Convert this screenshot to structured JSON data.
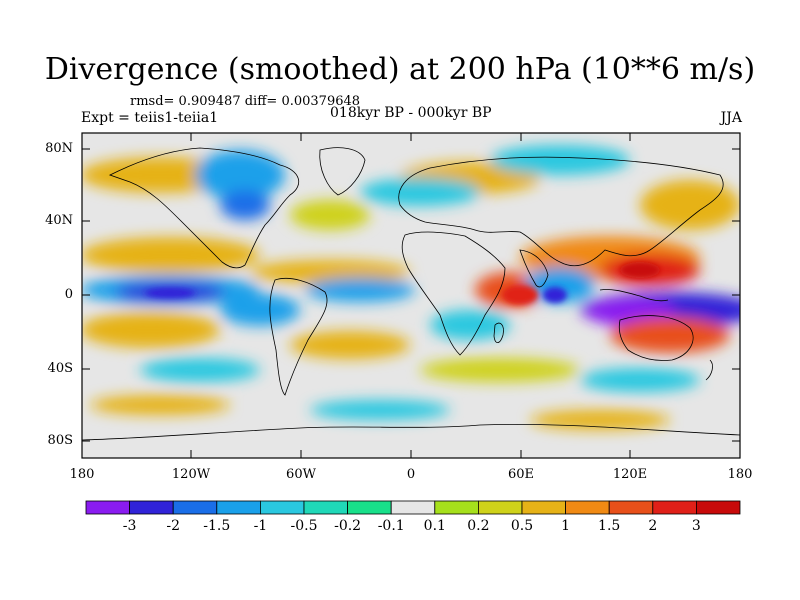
{
  "title": "Divergence (smoothed) at 200 hPa (10**6 m/s)",
  "stats_line": "rmsd= 0.909487 diff= 0.00379648",
  "experiment": "Expt = teiis1-teiia1",
  "period": "018kyr BP - 000kyr BP",
  "season": "JJA",
  "y_ticks": [
    "80N",
    "40N",
    "0",
    "40S",
    "80S"
  ],
  "x_ticks": [
    "180",
    "120W",
    "60W",
    "0",
    "60E",
    "120E",
    "180"
  ],
  "colorbar": {
    "colors": [
      "#8a1cf0",
      "#3023d8",
      "#1a6ee8",
      "#1aa0ea",
      "#2ac8e0",
      "#20d8b8",
      "#18e08a",
      "#e6e6e6",
      "#a6e01c",
      "#cfd21a",
      "#e6b217",
      "#f08a14",
      "#e8501a",
      "#e02018",
      "#c80a0a"
    ],
    "labels": [
      "-3",
      "-2",
      "-1.5",
      "-1",
      "-0.5",
      "-0.2",
      "-0.1",
      "0.1",
      "0.2",
      "0.5",
      "1",
      "1.5",
      "2",
      "3"
    ]
  }
}
